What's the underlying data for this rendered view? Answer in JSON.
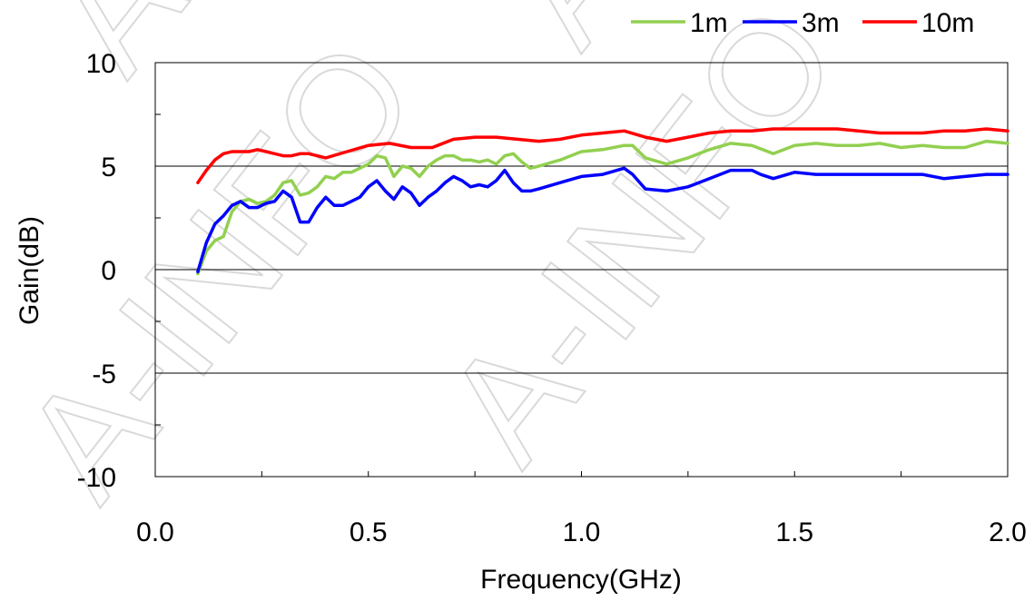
{
  "chart_data": {
    "type": "line",
    "title": "",
    "xlabel": "Frequency(GHz)",
    "ylabel": "Gain(dB)",
    "xlim": [
      0.0,
      2.0
    ],
    "ylim": [
      -10,
      10
    ],
    "x_tick_labels": [
      "0.0",
      "0.5",
      "1.0",
      "1.5",
      "2.0"
    ],
    "y_tick_labels": [
      "10",
      "5",
      "0",
      "-5",
      "-10"
    ],
    "grid": "horizontal major lines",
    "legend_position": "top-right",
    "watermark_text": "A-INFO",
    "series": [
      {
        "name": "1m",
        "color": "#92d050",
        "x": [
          0.1,
          0.12,
          0.14,
          0.16,
          0.18,
          0.2,
          0.22,
          0.24,
          0.26,
          0.28,
          0.3,
          0.32,
          0.34,
          0.36,
          0.38,
          0.4,
          0.42,
          0.44,
          0.46,
          0.48,
          0.5,
          0.52,
          0.54,
          0.56,
          0.58,
          0.6,
          0.62,
          0.64,
          0.66,
          0.68,
          0.7,
          0.72,
          0.74,
          0.76,
          0.78,
          0.8,
          0.82,
          0.84,
          0.86,
          0.88,
          0.9,
          0.95,
          1.0,
          1.05,
          1.1,
          1.12,
          1.15,
          1.2,
          1.25,
          1.3,
          1.35,
          1.4,
          1.45,
          1.5,
          1.55,
          1.6,
          1.65,
          1.7,
          1.75,
          1.8,
          1.85,
          1.9,
          1.95,
          2.0
        ],
        "values": [
          -0.2,
          0.9,
          1.4,
          1.6,
          2.8,
          3.3,
          3.4,
          3.2,
          3.3,
          3.6,
          4.2,
          4.3,
          3.6,
          3.7,
          4.0,
          4.5,
          4.4,
          4.7,
          4.7,
          4.9,
          5.1,
          5.5,
          5.4,
          4.5,
          5.0,
          4.9,
          4.5,
          5.0,
          5.3,
          5.5,
          5.5,
          5.3,
          5.3,
          5.2,
          5.3,
          5.1,
          5.5,
          5.6,
          5.2,
          4.9,
          5.0,
          5.3,
          5.7,
          5.8,
          6.0,
          6.0,
          5.4,
          5.1,
          5.4,
          5.8,
          6.1,
          6.0,
          5.6,
          6.0,
          6.1,
          6.0,
          6.0,
          6.1,
          5.9,
          6.0,
          5.9,
          5.9,
          6.2,
          6.1
        ]
      },
      {
        "name": "3m",
        "color": "#0000ff",
        "x": [
          0.1,
          0.12,
          0.14,
          0.16,
          0.18,
          0.2,
          0.22,
          0.24,
          0.26,
          0.28,
          0.3,
          0.32,
          0.34,
          0.36,
          0.38,
          0.4,
          0.42,
          0.44,
          0.46,
          0.48,
          0.5,
          0.52,
          0.54,
          0.56,
          0.58,
          0.6,
          0.62,
          0.64,
          0.66,
          0.68,
          0.7,
          0.72,
          0.74,
          0.76,
          0.78,
          0.8,
          0.82,
          0.84,
          0.86,
          0.88,
          0.9,
          0.95,
          1.0,
          1.05,
          1.1,
          1.12,
          1.15,
          1.2,
          1.25,
          1.3,
          1.35,
          1.4,
          1.42,
          1.45,
          1.5,
          1.55,
          1.6,
          1.65,
          1.7,
          1.75,
          1.8,
          1.85,
          1.9,
          1.95,
          2.0
        ],
        "values": [
          -0.1,
          1.3,
          2.2,
          2.6,
          3.1,
          3.3,
          3.0,
          3.0,
          3.2,
          3.3,
          3.8,
          3.5,
          2.3,
          2.3,
          3.0,
          3.5,
          3.1,
          3.1,
          3.3,
          3.5,
          4.0,
          4.3,
          3.8,
          3.4,
          4.0,
          3.7,
          3.1,
          3.5,
          3.8,
          4.2,
          4.5,
          4.3,
          4.0,
          4.1,
          4.0,
          4.3,
          4.8,
          4.2,
          3.8,
          3.8,
          3.9,
          4.2,
          4.5,
          4.6,
          4.9,
          4.6,
          3.9,
          3.8,
          4.0,
          4.4,
          4.8,
          4.8,
          4.6,
          4.4,
          4.7,
          4.6,
          4.6,
          4.6,
          4.6,
          4.6,
          4.6,
          4.4,
          4.5,
          4.6,
          4.6
        ]
      },
      {
        "name": "10m",
        "color": "#ff0000",
        "x": [
          0.1,
          0.12,
          0.14,
          0.16,
          0.18,
          0.2,
          0.22,
          0.24,
          0.26,
          0.28,
          0.3,
          0.32,
          0.34,
          0.36,
          0.38,
          0.4,
          0.45,
          0.5,
          0.55,
          0.6,
          0.65,
          0.7,
          0.75,
          0.8,
          0.85,
          0.9,
          0.95,
          1.0,
          1.05,
          1.1,
          1.15,
          1.2,
          1.25,
          1.3,
          1.35,
          1.4,
          1.45,
          1.5,
          1.55,
          1.6,
          1.65,
          1.7,
          1.75,
          1.8,
          1.85,
          1.9,
          1.95,
          2.0
        ],
        "values": [
          4.2,
          4.8,
          5.3,
          5.6,
          5.7,
          5.7,
          5.7,
          5.8,
          5.7,
          5.6,
          5.5,
          5.5,
          5.6,
          5.6,
          5.5,
          5.4,
          5.7,
          6.0,
          6.1,
          5.9,
          5.9,
          6.3,
          6.4,
          6.4,
          6.3,
          6.2,
          6.3,
          6.5,
          6.6,
          6.7,
          6.4,
          6.2,
          6.4,
          6.6,
          6.7,
          6.7,
          6.8,
          6.8,
          6.8,
          6.8,
          6.7,
          6.6,
          6.6,
          6.6,
          6.7,
          6.7,
          6.8,
          6.7
        ]
      }
    ]
  }
}
